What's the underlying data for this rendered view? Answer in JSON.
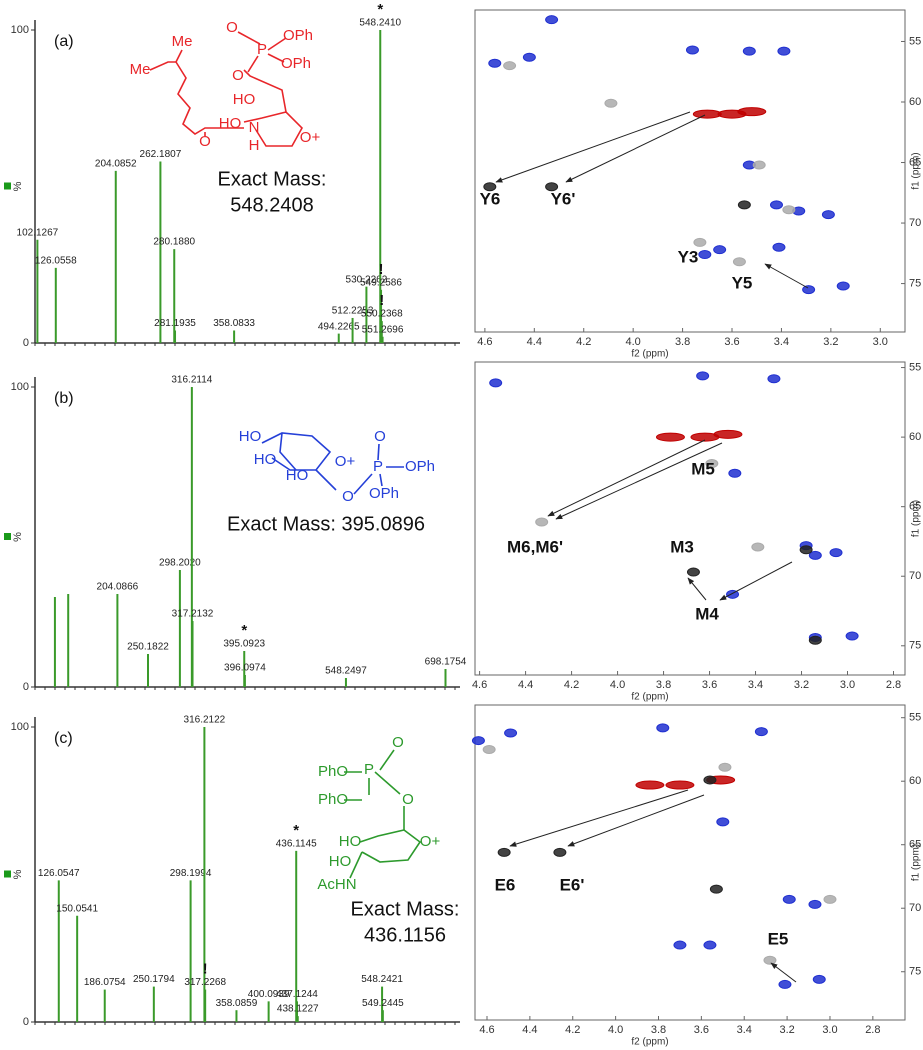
{
  "chart_data": [
    {
      "type": "bar",
      "panel_label": "(a)",
      "color": "#3a9a2a",
      "x": [
        102.1267,
        126.0558,
        204.0852,
        262.1807,
        280.188,
        281.1935,
        358.0833,
        494.2265,
        512.2253,
        530.2262,
        548.241,
        549.2586,
        550.2368,
        551.2696
      ],
      "values": [
        33,
        24,
        55,
        58,
        30,
        4,
        4,
        3,
        8,
        18,
        100,
        17,
        7,
        2
      ],
      "x_labels": [
        "102.1267",
        "126.0558",
        "204.0852",
        "262.1807",
        "280.1880",
        "281.1935",
        "358.0833",
        "494.2265",
        "512.2253",
        "530.2262",
        "548.2410",
        "549.2586",
        "550.2368",
        "551.2696"
      ],
      "peak_marks": [
        null,
        null,
        null,
        null,
        null,
        null,
        null,
        null,
        null,
        null,
        "*",
        "!",
        "!",
        null
      ],
      "xlim": [
        99,
        652
      ],
      "ylim": [
        0,
        100
      ],
      "yticks": [
        0,
        100
      ],
      "ylabel": "%",
      "structure": {
        "color": "#e8262a",
        "labels": [
          "Me",
          "Me",
          "O",
          "P",
          "OPh",
          "OPh",
          "O",
          "HO",
          "HO",
          "N",
          "H",
          "O",
          "O+"
        ]
      },
      "exact_mass": [
        "Exact Mass:",
        "548.2408"
      ]
    },
    {
      "type": "scatter",
      "xlim": [
        4.64,
        2.9
      ],
      "ylim": [
        52.4,
        79
      ],
      "xticks": [
        4.6,
        4.4,
        4.2,
        {
          "value": 4,
          "label": "4.0"
        },
        3.8,
        3.6,
        3.4,
        3.2,
        {
          "value": 3,
          "label": "3.0"
        }
      ],
      "yticks": [
        55,
        60,
        65,
        70,
        75
      ],
      "xlabel": "f2 (ppm)",
      "ylabel": "f1 (ppm)",
      "series": [
        {
          "color": "#c00000",
          "x": [
            3.7,
            3.6,
            3.52
          ],
          "y": [
            61,
            61,
            60.8
          ]
        },
        {
          "color": "#1f2fd0",
          "x": [
            4.56,
            4.42,
            4.33,
            3.76,
            3.53,
            3.39,
            3.53,
            3.42,
            3.33,
            3.21,
            3.71,
            3.65,
            3.41,
            3.29,
            3.15
          ],
          "y": [
            56.8,
            56.3,
            53.2,
            55.7,
            55.8,
            55.8,
            65.2,
            68.5,
            69,
            69.3,
            72.6,
            72.2,
            72,
            75.5,
            75.2
          ]
        },
        {
          "color": "#222222",
          "x": [
            4.58,
            4.33,
            3.55
          ],
          "y": [
            67,
            67,
            68.5
          ]
        },
        {
          "color": "#aaaaaa",
          "x": [
            4.5,
            4.09,
            3.73,
            3.57,
            3.49,
            3.37
          ],
          "y": [
            57,
            60.1,
            71.6,
            73.2,
            65.2,
            68.9
          ]
        }
      ],
      "annotations": [
        "Y6",
        "Y6'",
        "Y3",
        "Y5"
      ]
    },
    {
      "type": "bar",
      "panel_label": "(b)",
      "color": "#3a9a2a",
      "x": [
        110,
        130,
        204.0866,
        250.1822,
        298.202,
        316.2114,
        317.2132,
        395.0923,
        396.0974,
        548.2497,
        698.1754
      ],
      "values": [
        30,
        31,
        31,
        11,
        39,
        100,
        22,
        12,
        4,
        3,
        6
      ],
      "x_labels": [
        null,
        null,
        "204.0866",
        "250.1822",
        "298.2020",
        "316.2114",
        "317.2132",
        "395.0923",
        "396.0974",
        "548.2497",
        "698.1754"
      ],
      "peak_marks": [
        null,
        null,
        null,
        null,
        null,
        null,
        null,
        "*",
        null,
        null,
        null
      ],
      "xlim": [
        80,
        720
      ],
      "ylim": [
        0,
        100
      ],
      "yticks": [
        0,
        100
      ],
      "ylabel": "%",
      "structure": {
        "color": "#2540d8",
        "labels": [
          "HO",
          "HO",
          "HO",
          "O+",
          "O",
          "P",
          "O",
          "OPh",
          "OPh"
        ]
      },
      "exact_mass": [
        "Exact Mass: 395.0896"
      ]
    },
    {
      "type": "scatter",
      "xlim": [
        4.62,
        2.75
      ],
      "ylim": [
        54.6,
        77.1
      ],
      "xticks": [
        4.6,
        4.4,
        4.2,
        {
          "value": 4,
          "label": "4.0"
        },
        3.8,
        3.6,
        3.4,
        3.2,
        {
          "value": 3,
          "label": "3.0"
        },
        2.8
      ],
      "yticks": [
        55,
        60,
        65,
        70,
        75
      ],
      "xlabel": "f2 (ppm)",
      "ylabel": "f1 (ppm)",
      "series": [
        {
          "color": "#c00000",
          "x": [
            3.77,
            3.62,
            3.52
          ],
          "y": [
            60,
            60,
            59.8
          ]
        },
        {
          "color": "#1f2fd0",
          "x": [
            4.53,
            3.63,
            3.32,
            3.49,
            3.5,
            3.18,
            3.14,
            3.05,
            3.14,
            2.98
          ],
          "y": [
            56.1,
            55.6,
            55.8,
            62.6,
            71.3,
            67.8,
            68.5,
            68.3,
            74.4,
            74.3
          ]
        },
        {
          "color": "#222222",
          "x": [
            3.67,
            3.18,
            3.14
          ],
          "y": [
            69.7,
            68.1,
            74.6
          ]
        },
        {
          "color": "#aaaaaa",
          "x": [
            4.33,
            3.59,
            3.39
          ],
          "y": [
            66.1,
            61.9,
            67.9
          ]
        }
      ],
      "annotations": [
        "M5",
        "M6,M6'",
        "M3",
        "M4"
      ]
    },
    {
      "type": "bar",
      "panel_label": "(c)",
      "color": "#3a9a2a",
      "x": [
        126.0547,
        150.0541,
        186.0754,
        250.1794,
        298.1994,
        316.2122,
        317.2268,
        358.0859,
        400.0939,
        436.1145,
        437.1244,
        438.1227,
        548.2421,
        549.2445
      ],
      "values": [
        48,
        36,
        11,
        12,
        48,
        100,
        11,
        4,
        7,
        58,
        7,
        2,
        12,
        4
      ],
      "x_labels": [
        "126.0547",
        "150.0541",
        "186.0754",
        "250.1794",
        "298.1994",
        "316.2122",
        "317.2268",
        "358.0859",
        "400.0939",
        "436.1145",
        "437.1244",
        "438.1227",
        "548.2421",
        "549.2445"
      ],
      "peak_marks": [
        null,
        null,
        null,
        null,
        null,
        null,
        "!",
        null,
        null,
        "*",
        null,
        null,
        null,
        null
      ],
      "xlim": [
        95,
        650
      ],
      "ylim": [
        0,
        100
      ],
      "yticks": [
        0,
        100
      ],
      "ylabel": "%",
      "structure": {
        "color": "#2d9a2d",
        "labels": [
          "O",
          "PhO",
          "P",
          "PhO",
          "O",
          "HO",
          "HO",
          "O+",
          "AcHN"
        ]
      },
      "exact_mass": [
        "Exact Mass:",
        "436.1156"
      ]
    },
    {
      "type": "scatter",
      "xlim": [
        4.656,
        2.65
      ],
      "ylim": [
        54,
        78.8
      ],
      "xticks": [
        4.6,
        4.4,
        4.2,
        {
          "value": 4,
          "label": "4.0"
        },
        3.8,
        3.6,
        3.4,
        3.2,
        {
          "value": 3,
          "label": "3.0"
        },
        2.8
      ],
      "yticks": [
        55,
        60,
        65,
        70,
        75
      ],
      "xlabel": "f2 (ppm)",
      "ylabel": "f1 (ppm)",
      "series": [
        {
          "color": "#c00000",
          "x": [
            3.84,
            3.7,
            3.51
          ],
          "y": [
            60.3,
            60.3,
            59.9
          ]
        },
        {
          "color": "#1f2fd0",
          "x": [
            4.64,
            4.49,
            3.78,
            3.32,
            3.5,
            3.19,
            3.07,
            3.7,
            3.56,
            3.21,
            3.05
          ],
          "y": [
            56.8,
            56.2,
            55.8,
            56.1,
            63.2,
            69.3,
            69.7,
            72.9,
            72.9,
            76,
            75.6
          ]
        },
        {
          "color": "#222222",
          "x": [
            4.52,
            4.26,
            3.53,
            3.56
          ],
          "y": [
            65.6,
            65.6,
            68.5,
            59.9
          ]
        },
        {
          "color": "#aaaaaa",
          "x": [
            4.59,
            3,
            3.28,
            3.49
          ],
          "y": [
            57.5,
            69.3,
            74.1,
            58.9
          ]
        }
      ],
      "annotations": [
        "E6",
        "E6'",
        "E5"
      ]
    }
  ]
}
